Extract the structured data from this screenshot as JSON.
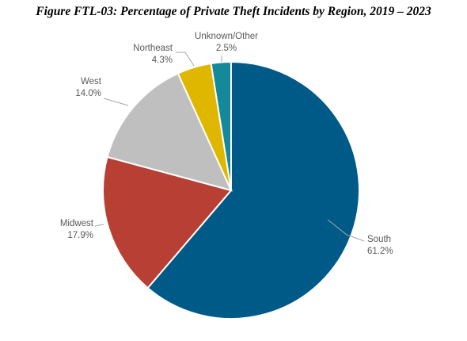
{
  "chart_data": {
    "type": "pie",
    "title": "Figure FTL-03: Percentage of Private Theft Incidents by Region, 2019 – 2023",
    "slices": [
      {
        "label": "South",
        "value": 61.2,
        "value_label": "61.2%",
        "color": "#005a87"
      },
      {
        "label": "Midwest",
        "value": 17.9,
        "value_label": "17.9%",
        "color": "#b83f34"
      },
      {
        "label": "West",
        "value": 14.0,
        "value_label": "14.0%",
        "color": "#bfbfbf"
      },
      {
        "label": "Northeast",
        "value": 4.3,
        "value_label": "4.3%",
        "color": "#e0b700"
      },
      {
        "label": "Unknown/Other",
        "value": 2.5,
        "value_label": "2.5%",
        "color": "#14899a"
      }
    ],
    "start": "12 o'clock",
    "direction": "clockwise",
    "legend": "none",
    "data_labels": "outside with leader lines"
  }
}
